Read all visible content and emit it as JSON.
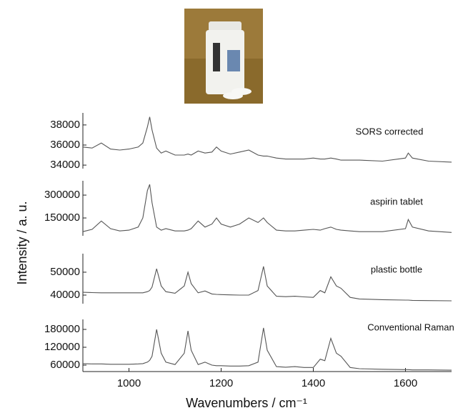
{
  "chart_data": [
    {
      "type": "line",
      "annotation": "SORS corrected",
      "color": "#555555",
      "x": [
        900,
        920,
        940,
        960,
        980,
        1000,
        1020,
        1030,
        1040,
        1045,
        1050,
        1060,
        1070,
        1080,
        1100,
        1120,
        1128,
        1135,
        1150,
        1165,
        1180,
        1190,
        1200,
        1220,
        1240,
        1260,
        1280,
        1292,
        1300,
        1320,
        1340,
        1360,
        1380,
        1400,
        1415,
        1425,
        1438,
        1450,
        1460,
        1480,
        1500,
        1550,
        1600,
        1606,
        1615,
        1650,
        1700
      ],
      "values": [
        35800,
        35700,
        36200,
        35600,
        35500,
        35600,
        35800,
        36200,
        37800,
        38800,
        37500,
        35700,
        35200,
        35400,
        35000,
        35000,
        35100,
        35000,
        35400,
        35200,
        35300,
        35800,
        35400,
        35100,
        35300,
        35500,
        35000,
        34900,
        34900,
        34700,
        34600,
        34600,
        34600,
        34700,
        34600,
        34600,
        34700,
        34600,
        34500,
        34500,
        34500,
        34400,
        34700,
        35200,
        34700,
        34400,
        34300
      ],
      "xlim": [
        900,
        1700
      ],
      "ylim": [
        33650,
        39200
      ],
      "yticks": [
        34000,
        36000,
        38000
      ]
    },
    {
      "type": "line",
      "annotation": "aspirin tablet",
      "color": "#555555",
      "x": [
        900,
        920,
        940,
        960,
        980,
        1000,
        1020,
        1030,
        1040,
        1045,
        1050,
        1060,
        1070,
        1080,
        1100,
        1120,
        1128,
        1135,
        1150,
        1165,
        1180,
        1190,
        1200,
        1220,
        1240,
        1260,
        1280,
        1292,
        1300,
        1320,
        1340,
        1360,
        1380,
        1400,
        1415,
        1425,
        1438,
        1450,
        1460,
        1480,
        1500,
        1550,
        1600,
        1606,
        1615,
        1650,
        1700
      ],
      "values": [
        60000,
        75000,
        130000,
        80000,
        65000,
        70000,
        90000,
        150000,
        330000,
        370000,
        250000,
        90000,
        70000,
        80000,
        65000,
        65000,
        70000,
        80000,
        130000,
        90000,
        110000,
        150000,
        110000,
        90000,
        110000,
        150000,
        120000,
        150000,
        120000,
        70000,
        65000,
        65000,
        70000,
        75000,
        70000,
        80000,
        90000,
        75000,
        70000,
        65000,
        60000,
        60000,
        80000,
        140000,
        90000,
        65000,
        55000
      ],
      "xlim": [
        900,
        1700
      ],
      "ylim": [
        33000,
        394000
      ],
      "yticks": [
        150000,
        300000
      ]
    },
    {
      "type": "line",
      "annotation": "plastic bottle",
      "color": "#555555",
      "x": [
        900,
        920,
        940,
        960,
        980,
        1000,
        1020,
        1030,
        1040,
        1045,
        1050,
        1060,
        1070,
        1080,
        1100,
        1120,
        1128,
        1135,
        1150,
        1165,
        1180,
        1190,
        1200,
        1220,
        1240,
        1260,
        1280,
        1292,
        1300,
        1320,
        1340,
        1360,
        1380,
        1400,
        1415,
        1425,
        1438,
        1450,
        1460,
        1480,
        1500,
        1550,
        1600,
        1606,
        1615,
        1650,
        1700
      ],
      "values": [
        41200,
        41100,
        41000,
        41000,
        41000,
        41000,
        41000,
        41000,
        41500,
        42000,
        43500,
        51500,
        44000,
        41500,
        40800,
        44000,
        50000,
        45000,
        41000,
        41800,
        40500,
        40300,
        40200,
        40100,
        40000,
        40000,
        42000,
        52500,
        44000,
        39500,
        39300,
        39500,
        39200,
        39000,
        42000,
        41000,
        48000,
        44000,
        43000,
        39000,
        38300,
        38000,
        37800,
        37800,
        37700,
        37600,
        37500
      ],
      "xlim": [
        900,
        1700
      ],
      "ylim": [
        36250,
        58100
      ],
      "yticks": [
        40000,
        50000
      ]
    },
    {
      "type": "line",
      "annotation": "Conventional Raman",
      "color": "#555555",
      "x": [
        900,
        920,
        940,
        960,
        980,
        1000,
        1020,
        1030,
        1040,
        1045,
        1050,
        1060,
        1070,
        1080,
        1100,
        1120,
        1128,
        1135,
        1150,
        1165,
        1180,
        1190,
        1200,
        1220,
        1240,
        1260,
        1280,
        1292,
        1300,
        1320,
        1340,
        1360,
        1380,
        1400,
        1415,
        1425,
        1438,
        1450,
        1460,
        1480,
        1500,
        1550,
        1600,
        1606,
        1615,
        1650,
        1700
      ],
      "values": [
        65000,
        64000,
        64000,
        63000,
        63000,
        63000,
        64000,
        65000,
        70000,
        76000,
        90000,
        180000,
        100000,
        70000,
        62000,
        100000,
        175000,
        110000,
        62000,
        70000,
        60000,
        58000,
        58000,
        57000,
        57000,
        58000,
        70000,
        185000,
        110000,
        55000,
        53000,
        55000,
        52000,
        52000,
        80000,
        75000,
        150000,
        100000,
        90000,
        52000,
        48000,
        46000,
        45000,
        45000,
        44000,
        44000,
        43000
      ],
      "xlim": [
        900,
        1700
      ],
      "ylim": [
        38400,
        213600
      ],
      "yticks": [
        60000,
        120000,
        180000
      ],
      "xticks": [
        1000,
        1200,
        1400,
        1600
      ],
      "xlabel": "Wavenumbers / cm⁻¹",
      "ylabel": "Intensity / a. u."
    }
  ]
}
